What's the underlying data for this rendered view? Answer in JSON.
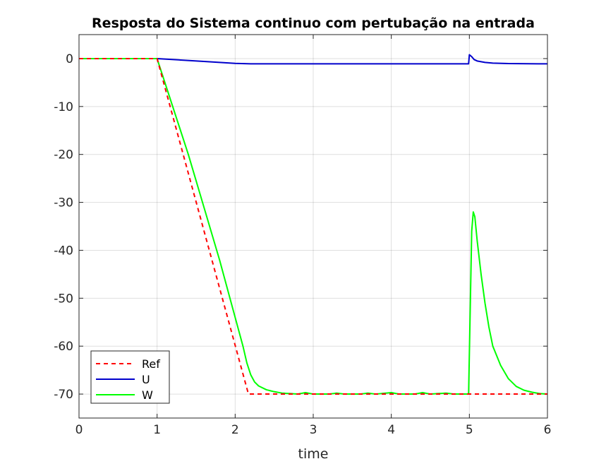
{
  "chart_data": {
    "type": "line",
    "title": "Resposta do Sistema continuo com pertubação na entrada",
    "xlabel": "time",
    "ylabel": "",
    "xlim": [
      0,
      6
    ],
    "ylim": [
      -75,
      5
    ],
    "xticks": [
      0,
      1,
      2,
      3,
      4,
      5,
      6
    ],
    "yticks": [
      0,
      -10,
      -20,
      -30,
      -40,
      -50,
      -60,
      -70
    ],
    "grid": true,
    "legend_position": "bottom-left",
    "series": [
      {
        "name": "Ref",
        "color": "#ff0000",
        "style": "dashed",
        "points": [
          [
            0,
            0
          ],
          [
            1,
            0
          ],
          [
            2.17,
            -70
          ],
          [
            6,
            -70
          ]
        ]
      },
      {
        "name": "U",
        "color": "#0000cc",
        "style": "solid",
        "points": [
          [
            0,
            0
          ],
          [
            1,
            0
          ],
          [
            1.3,
            -0.3
          ],
          [
            1.6,
            -0.6
          ],
          [
            2.0,
            -1.0
          ],
          [
            2.2,
            -1.1
          ],
          [
            3,
            -1.1
          ],
          [
            4,
            -1.1
          ],
          [
            4.99,
            -1.1
          ],
          [
            5.0,
            0.8
          ],
          [
            5.03,
            0.4
          ],
          [
            5.06,
            -0.2
          ],
          [
            5.1,
            -0.5
          ],
          [
            5.2,
            -0.8
          ],
          [
            5.3,
            -0.95
          ],
          [
            5.5,
            -1.05
          ],
          [
            6,
            -1.1
          ]
        ]
      },
      {
        "name": "W",
        "color": "#00ff00",
        "style": "solid",
        "points": [
          [
            0,
            0
          ],
          [
            1.0,
            0
          ],
          [
            1.05,
            -2.5
          ],
          [
            1.2,
            -10
          ],
          [
            1.4,
            -20
          ],
          [
            1.6,
            -31
          ],
          [
            1.8,
            -42
          ],
          [
            2.0,
            -54
          ],
          [
            2.1,
            -60
          ],
          [
            2.15,
            -63.5
          ],
          [
            2.2,
            -66
          ],
          [
            2.25,
            -67.5
          ],
          [
            2.3,
            -68.3
          ],
          [
            2.4,
            -69.1
          ],
          [
            2.5,
            -69.5
          ],
          [
            2.6,
            -69.8
          ],
          [
            2.8,
            -70
          ],
          [
            2.9,
            -69.7
          ],
          [
            3.0,
            -70
          ],
          [
            3.2,
            -70
          ],
          [
            3.3,
            -69.8
          ],
          [
            3.4,
            -70
          ],
          [
            3.6,
            -70
          ],
          [
            3.7,
            -69.8
          ],
          [
            3.8,
            -70
          ],
          [
            4.0,
            -69.7
          ],
          [
            4.1,
            -70
          ],
          [
            4.3,
            -70
          ],
          [
            4.4,
            -69.7
          ],
          [
            4.5,
            -70
          ],
          [
            4.7,
            -69.8
          ],
          [
            4.8,
            -70
          ],
          [
            4.99,
            -70
          ],
          [
            5.03,
            -36
          ],
          [
            5.05,
            -32
          ],
          [
            5.07,
            -33
          ],
          [
            5.1,
            -38
          ],
          [
            5.15,
            -45
          ],
          [
            5.2,
            -51
          ],
          [
            5.25,
            -56
          ],
          [
            5.3,
            -60
          ],
          [
            5.4,
            -64
          ],
          [
            5.5,
            -66.8
          ],
          [
            5.6,
            -68.4
          ],
          [
            5.7,
            -69.2
          ],
          [
            5.8,
            -69.6
          ],
          [
            5.9,
            -69.9
          ],
          [
            6.0,
            -70
          ]
        ]
      }
    ]
  }
}
